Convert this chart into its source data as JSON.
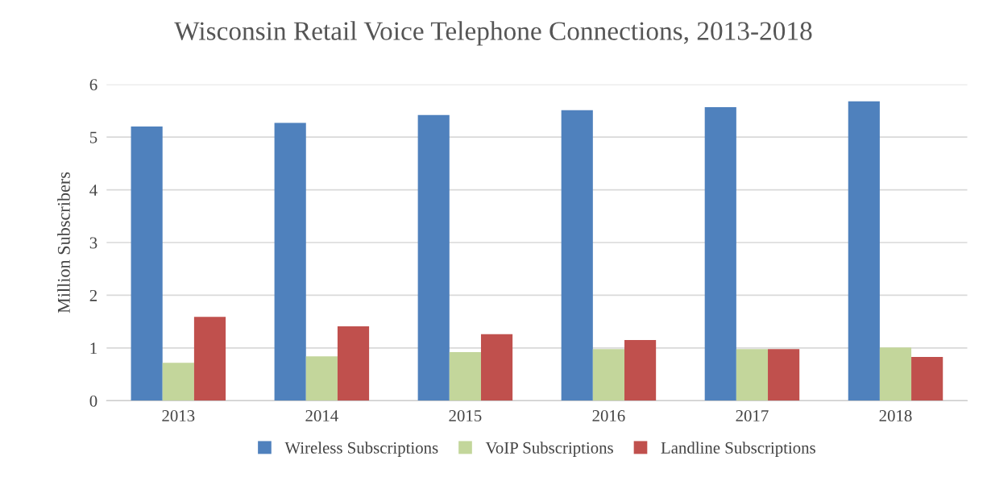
{
  "chart_data": {
    "type": "bar",
    "title": "Wisconsin Retail Voice Telephone Connections, 2013-2018",
    "ylabel": "Million Subscribers",
    "categories": [
      "2013",
      "2014",
      "2015",
      "2016",
      "2017",
      "2018"
    ],
    "series": [
      {
        "name": "Wireless Subscriptions",
        "color": "#4f81bd",
        "values": [
          5.2,
          5.27,
          5.42,
          5.51,
          5.57,
          5.68
        ]
      },
      {
        "name": "VoIP Subscriptions",
        "color": "#c3d69b",
        "values": [
          0.72,
          0.84,
          0.92,
          0.98,
          0.98,
          1.01
        ]
      },
      {
        "name": "Landline Subscriptions",
        "color": "#c0504d",
        "values": [
          1.59,
          1.41,
          1.26,
          1.15,
          0.98,
          0.83
        ]
      }
    ],
    "ylim": [
      0,
      6
    ],
    "yticks": [
      0,
      1,
      2,
      3,
      4,
      5,
      6
    ],
    "grid": "y",
    "legend": "bottom"
  }
}
